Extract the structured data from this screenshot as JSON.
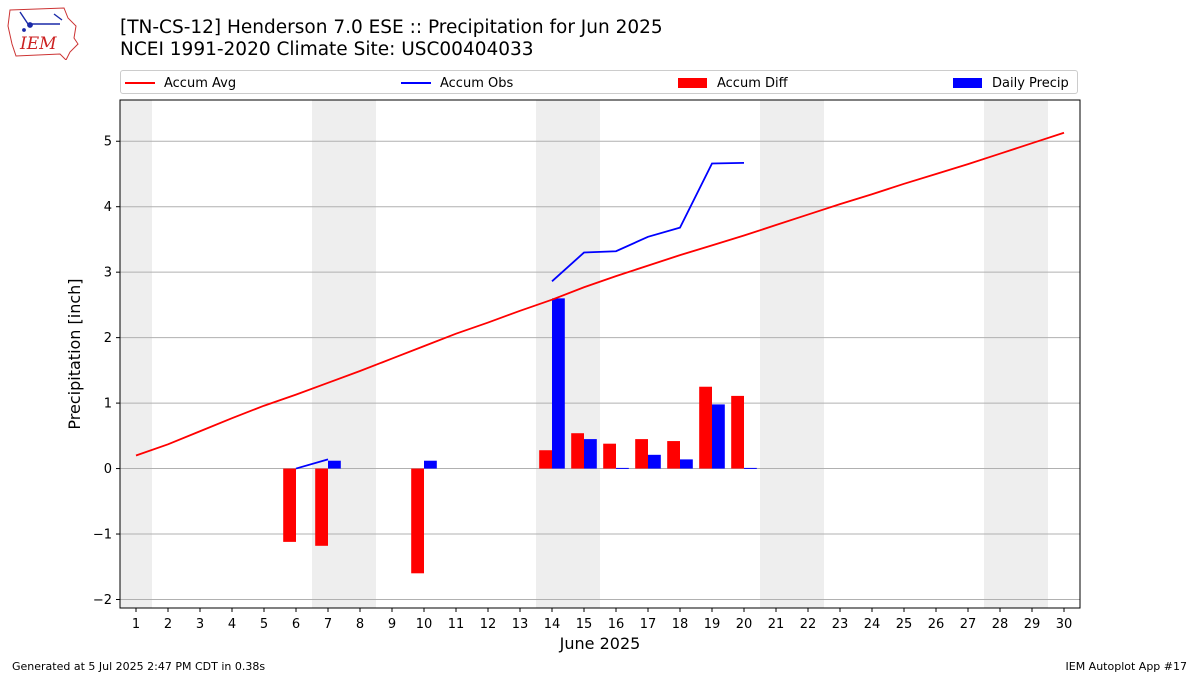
{
  "logo": {
    "text": "IEM"
  },
  "title": {
    "line1": "[TN-CS-12] Henderson 7.0 ESE :: Precipitation for Jun 2025",
    "line2": "NCEI 1991-2020 Climate Site: USC00404033"
  },
  "footer": {
    "left": "Generated at 5 Jul 2025 2:47 PM CDT in 0.38s",
    "right": "IEM Autoplot App #17"
  },
  "chart_data": {
    "type": "bar",
    "xlabel": "June 2025",
    "ylabel": "Precipitation [inch]",
    "xlim": [
      0.5,
      30.5
    ],
    "ylim": [
      -2.13,
      5.63
    ],
    "yticks": [
      -2,
      -1,
      0,
      1,
      2,
      3,
      4,
      5
    ],
    "ytick_labels": [
      "−2",
      "−1",
      "0",
      "1",
      "2",
      "3",
      "4",
      "5"
    ],
    "days": [
      "1",
      "2",
      "3",
      "4",
      "5",
      "6",
      "7",
      "8",
      "9",
      "10",
      "11",
      "12",
      "13",
      "14",
      "15",
      "16",
      "17",
      "18",
      "19",
      "20",
      "21",
      "22",
      "23",
      "24",
      "25",
      "26",
      "27",
      "28",
      "29",
      "30"
    ],
    "weekend_days": [
      1,
      7,
      8,
      14,
      15,
      21,
      22,
      28,
      29
    ],
    "grid": "y",
    "legend_placement": "top",
    "colors": {
      "avg": "#ff0000",
      "obs": "#0000ff",
      "diff": "#ff0000",
      "daily": "#0000ff",
      "weekend": "#eeeeee",
      "grid": "#b0b0b0"
    },
    "series": [
      {
        "name": "Accum Avg",
        "kind": "line",
        "days": [
          1,
          2,
          3,
          4,
          5,
          6,
          7,
          8,
          9,
          10,
          11,
          12,
          13,
          14,
          15,
          16,
          17,
          18,
          19,
          20,
          21,
          22,
          23,
          24,
          25,
          26,
          27,
          28,
          29,
          30
        ],
        "values": [
          0.2,
          0.37,
          0.57,
          0.77,
          0.96,
          1.13,
          1.31,
          1.49,
          1.68,
          1.87,
          2.06,
          2.23,
          2.41,
          2.58,
          2.77,
          2.94,
          3.1,
          3.26,
          3.41,
          3.56,
          3.72,
          3.88,
          4.04,
          4.19,
          4.35,
          4.5,
          4.65,
          4.81,
          4.97,
          5.13
        ]
      },
      {
        "name": "Accum Obs",
        "kind": "line-segments",
        "segments": [
          {
            "days": [
              6,
              7
            ],
            "values": [
              0.0,
              0.14
            ]
          },
          {
            "days": [
              14,
              15,
              16,
              17,
              18,
              19,
              20
            ],
            "values": [
              2.86,
              3.3,
              3.32,
              3.54,
              3.68,
              4.66,
              4.67
            ]
          }
        ]
      },
      {
        "name": "Accum Diff",
        "kind": "bar",
        "offset": -0.2,
        "days": [
          6,
          7,
          10,
          14,
          15,
          16,
          17,
          18,
          19,
          20
        ],
        "values": [
          -1.12,
          -1.18,
          -1.6,
          0.28,
          0.54,
          0.38,
          0.45,
          0.42,
          1.25,
          1.11
        ]
      },
      {
        "name": "Daily Precip",
        "kind": "bar",
        "offset": 0.2,
        "days": [
          7,
          10,
          14,
          15,
          16,
          17,
          18,
          19,
          20
        ],
        "values": [
          0.12,
          0.12,
          2.6,
          0.45,
          0.01,
          0.21,
          0.14,
          0.98,
          0.01
        ]
      }
    ]
  }
}
